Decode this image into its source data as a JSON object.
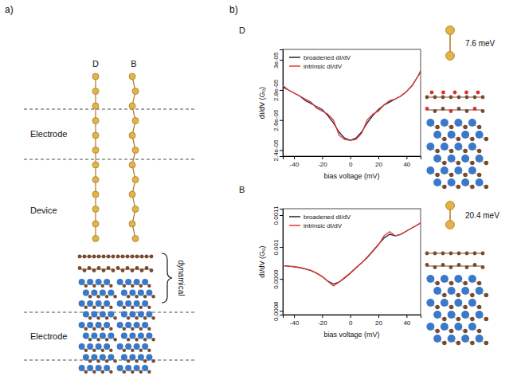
{
  "figure": {
    "panel_a": {
      "letter": "a)",
      "columns": [
        "D",
        "B"
      ],
      "regions": [
        "Electrode",
        "Device",
        "Electrode"
      ],
      "bracket_label": "dynamical"
    },
    "panel_b": {
      "letter": "b)"
    }
  },
  "chart_data": [
    {
      "type": "line",
      "title": "D",
      "xlabel": "bias voltage (mV)",
      "ylabel": "dI/dV (G₀)",
      "x": [
        -48,
        -44,
        -40,
        -36,
        -32,
        -28,
        -24,
        -20,
        -16,
        -12,
        -8,
        -4,
        0,
        4,
        8,
        12,
        16,
        20,
        24,
        28,
        32,
        36,
        40,
        44,
        48,
        50
      ],
      "series": [
        {
          "name": "broadened dI/dV",
          "color": "#23234a",
          "values": [
            2.82e-05,
            2.8e-05,
            2.78e-05,
            2.76e-05,
            2.73e-05,
            2.71e-05,
            2.69e-05,
            2.67e-05,
            2.63e-05,
            2.58e-05,
            2.52e-05,
            2.48e-05,
            2.465e-05,
            2.48e-05,
            2.52e-05,
            2.58e-05,
            2.63e-05,
            2.67e-05,
            2.7e-05,
            2.72e-05,
            2.74e-05,
            2.76e-05,
            2.79e-05,
            2.83e-05,
            2.89e-05,
            2.92e-05
          ]
        },
        {
          "name": "intrinsic dI/dV",
          "color": "#e8392b",
          "values": [
            2.83e-05,
            2.8e-05,
            2.78e-05,
            2.76e-05,
            2.74e-05,
            2.72e-05,
            2.68e-05,
            2.66e-05,
            2.64e-05,
            2.6e-05,
            2.5e-05,
            2.47e-05,
            2.465e-05,
            2.47e-05,
            2.51e-05,
            2.6e-05,
            2.64e-05,
            2.66e-05,
            2.7e-05,
            2.73e-05,
            2.74e-05,
            2.76e-05,
            2.79e-05,
            2.83e-05,
            2.89e-05,
            2.93e-05
          ]
        }
      ],
      "xlim": [
        -48,
        50
      ],
      "xticks": [
        -40,
        -20,
        0,
        20,
        40
      ],
      "ylim": [
        2.36e-05,
        3.07e-05
      ],
      "yticks": [
        {
          "value": 2.4e-05,
          "label": "2.4e-05"
        },
        {
          "value": 2.6e-05,
          "label": "2.6e-05"
        },
        {
          "value": 2.8e-05,
          "label": "2.8e-05"
        },
        {
          "value": 3e-05,
          "label": "3e-05"
        }
      ],
      "legend": "upper left",
      "annotations": [
        "7.6 meV"
      ]
    },
    {
      "type": "line",
      "title": "B",
      "xlabel": "bias voltage (mV)",
      "ylabel": "dI/dV (G₀)",
      "x": [
        -48,
        -44,
        -40,
        -36,
        -32,
        -28,
        -24,
        -20,
        -16,
        -12,
        -8,
        -4,
        0,
        4,
        8,
        12,
        16,
        20,
        24,
        28,
        32,
        36,
        40,
        44,
        48,
        50
      ],
      "series": [
        {
          "name": "broadened dI/dV",
          "color": "#23234a",
          "values": [
            0.000942,
            0.00094,
            0.000938,
            0.000935,
            0.000931,
            0.000926,
            0.000918,
            0.000908,
            0.000893,
            0.000884,
            0.00089,
            0.000903,
            0.000918,
            0.000934,
            0.00095,
            0.000968,
            0.000988,
            0.001008,
            0.001028,
            0.00104,
            0.001035,
            0.00104,
            0.00105,
            0.00106,
            0.00107,
            0.001075
          ]
        },
        {
          "name": "intrinsic dI/dV",
          "color": "#e8392b",
          "values": [
            0.000942,
            0.00094,
            0.000939,
            0.000936,
            0.000932,
            0.000927,
            0.000918,
            0.000907,
            0.000893,
            0.000878,
            0.00089,
            0.000905,
            0.000919,
            0.000935,
            0.00095,
            0.000966,
            0.000986,
            0.001006,
            0.001035,
            0.001048,
            0.001035,
            0.00104,
            0.00105,
            0.00106,
            0.00107,
            0.001076
          ]
        }
      ],
      "xlim": [
        -48,
        50
      ],
      "xticks": [
        -40,
        -20,
        0,
        20,
        40
      ],
      "ylim": [
        0.000788,
        0.00112
      ],
      "yticks": [
        0.0008,
        0.0009,
        0.001,
        0.0011
      ],
      "legend": "upper left",
      "annotations": [
        "20.4 meV"
      ]
    }
  ]
}
